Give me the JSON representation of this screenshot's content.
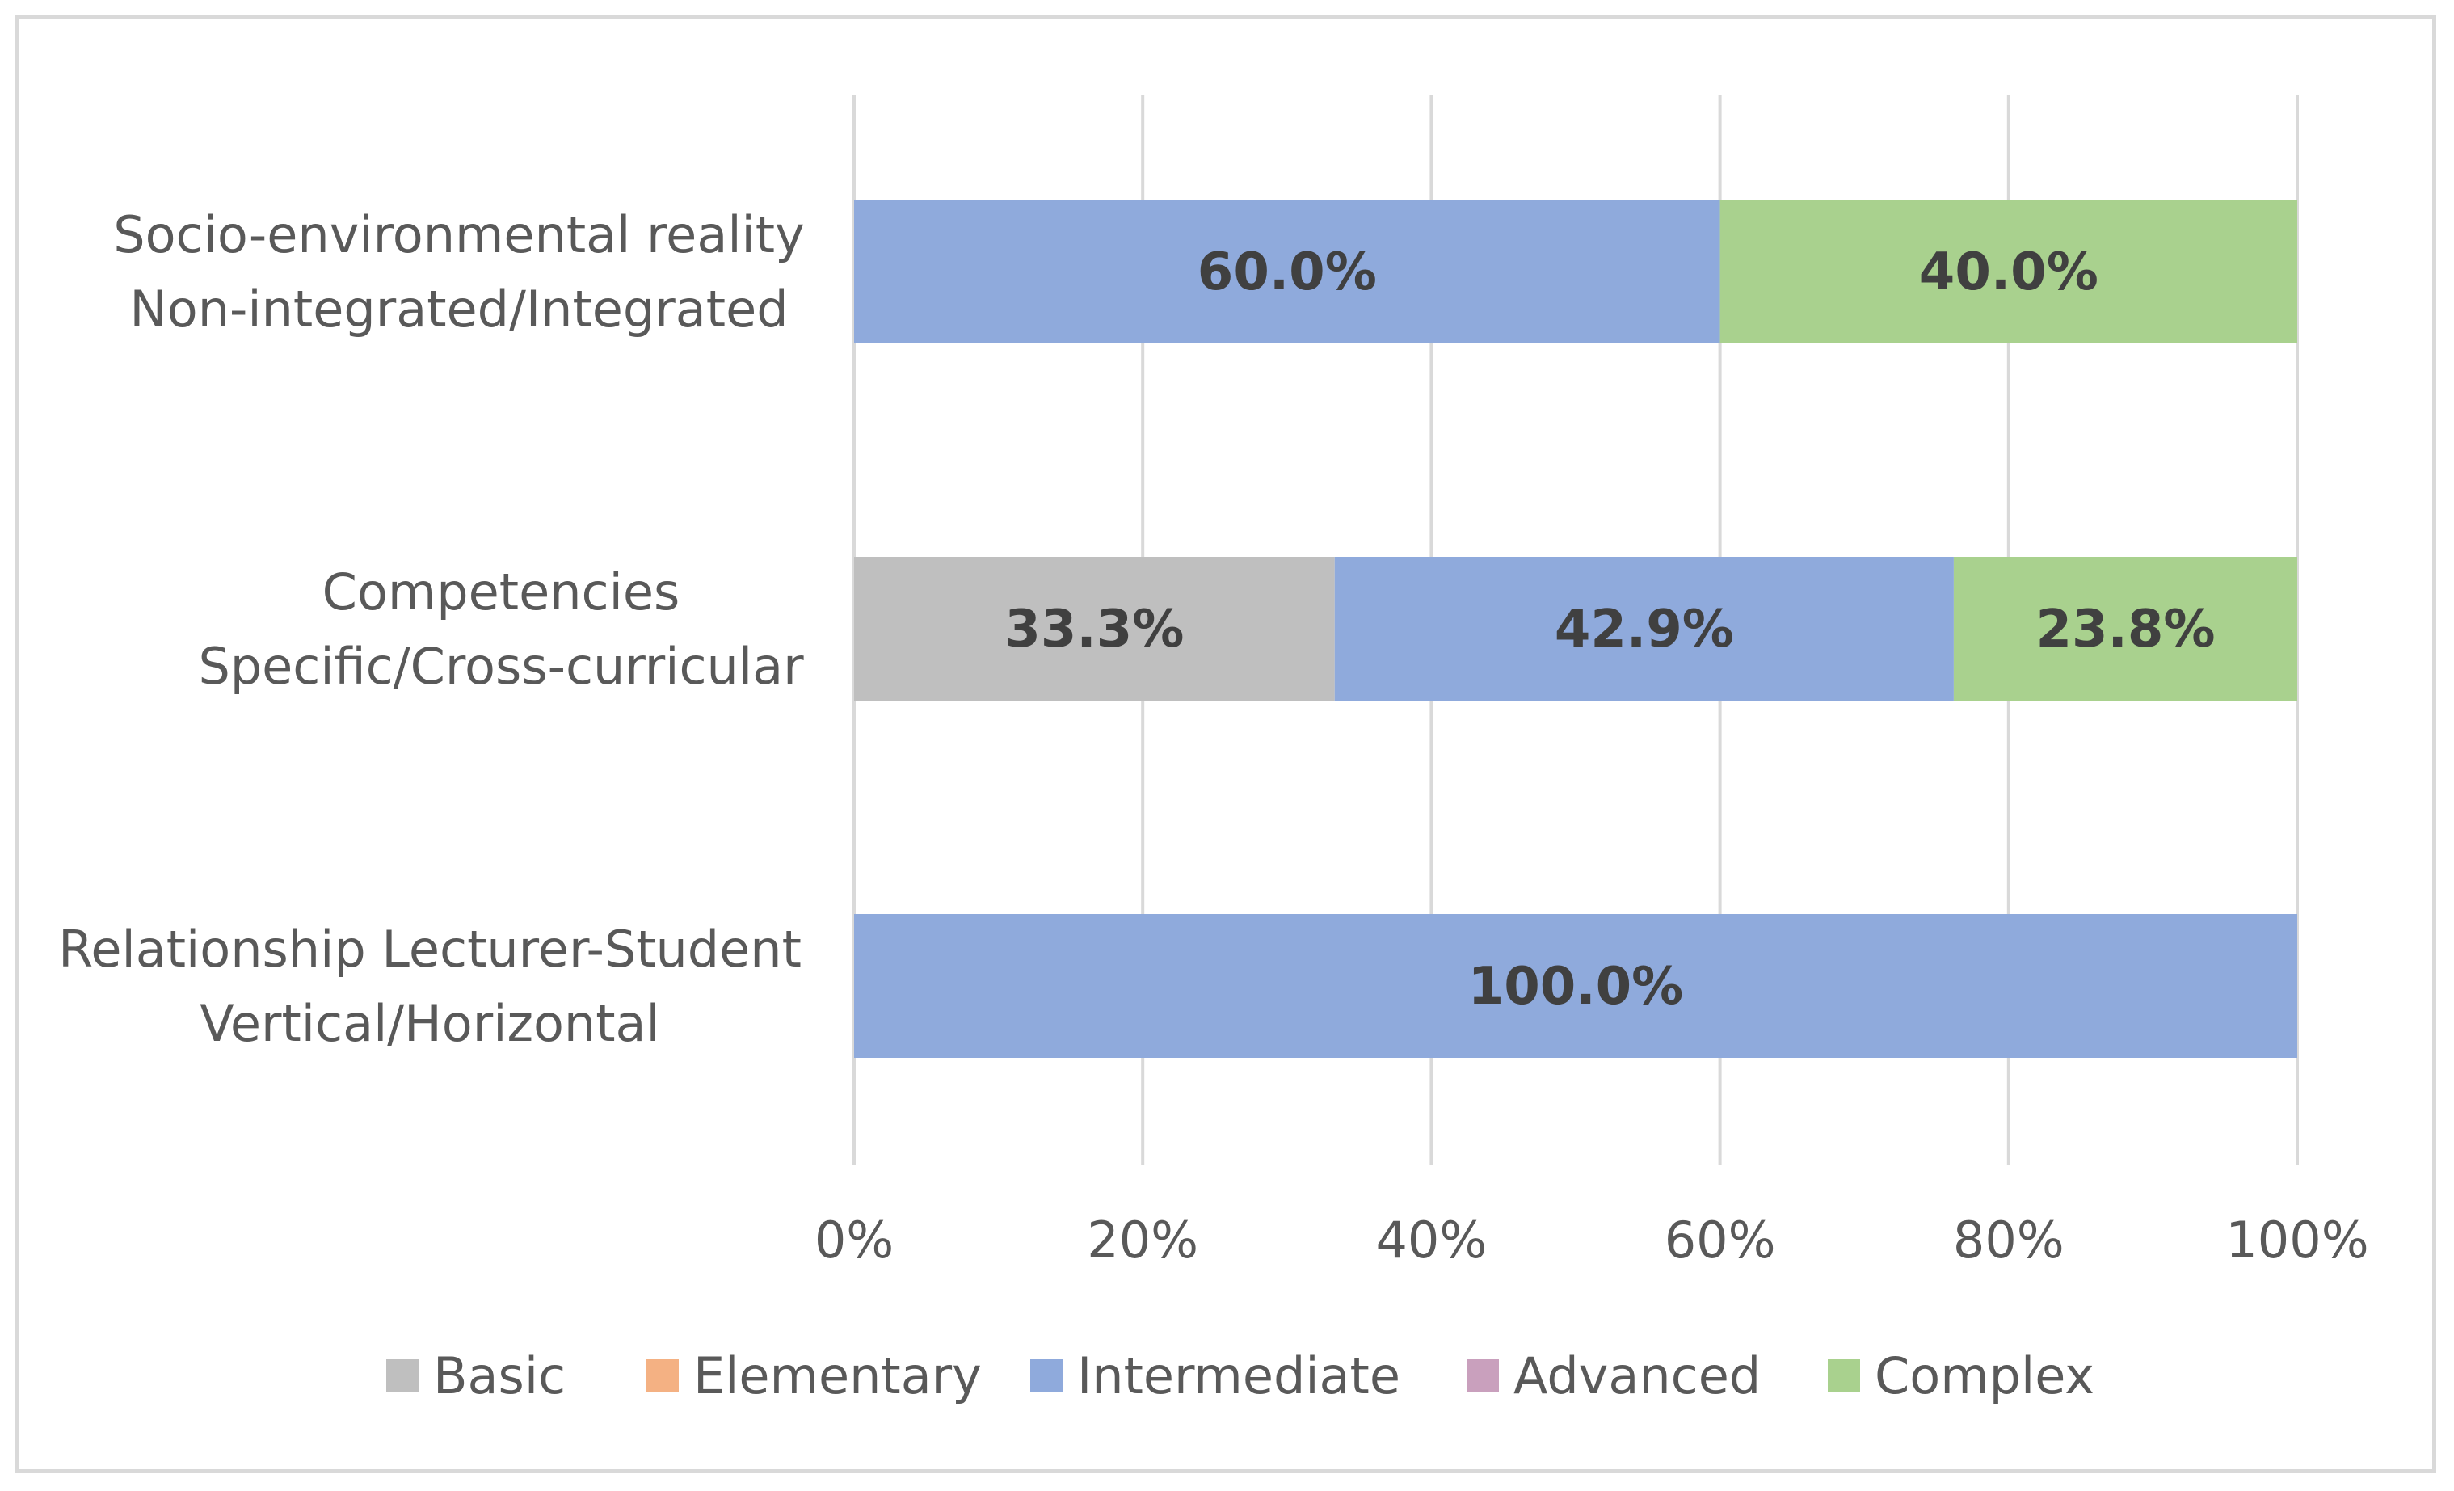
{
  "chart_data": {
    "type": "bar",
    "orientation": "horizontal",
    "stacked": "percent",
    "categories": [
      [
        "Socio-environmental reality",
        "Non-integrated/Integrated"
      ],
      [
        "Competencies",
        "Specific/Cross-curricular"
      ],
      [
        "Relationship Lecturer-Student",
        "Vertical/Horizontal"
      ]
    ],
    "series": [
      {
        "name": "Basic",
        "color": "#bfbfbf",
        "values": [
          0,
          33.3,
          0
        ]
      },
      {
        "name": "Elementary",
        "color": "#f4b183",
        "values": [
          0,
          0,
          0
        ]
      },
      {
        "name": "Intermediate",
        "color": "#8faadc",
        "values": [
          60.0,
          42.9,
          100.0
        ]
      },
      {
        "name": "Advanced",
        "color": "#c9a0bd",
        "values": [
          0,
          0,
          0
        ]
      },
      {
        "name": "Complex",
        "color": "#a9d18e",
        "values": [
          40.0,
          23.8,
          0
        ]
      }
    ],
    "xlim": [
      0,
      100
    ],
    "xticks": [
      "0%",
      "20%",
      "40%",
      "60%",
      "80%",
      "100%"
    ],
    "grid": "vertical",
    "legend": "bottom",
    "title": "",
    "xlabel": "",
    "ylabel": ""
  }
}
